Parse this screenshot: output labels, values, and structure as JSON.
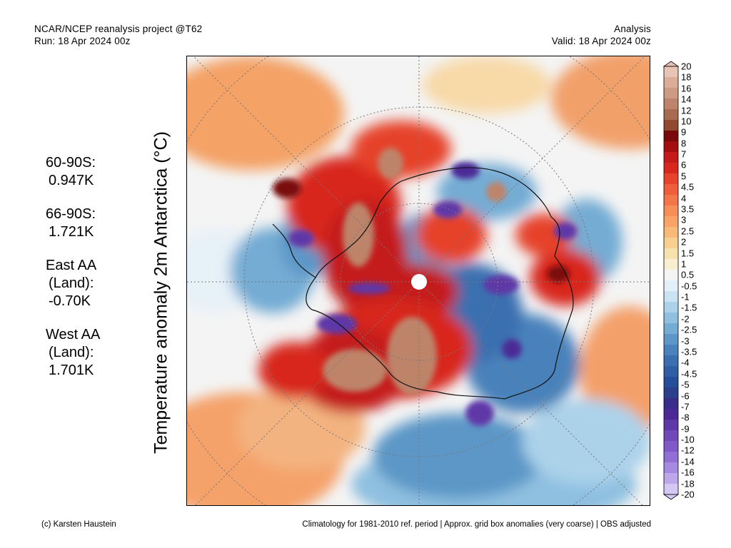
{
  "header": {
    "title_line1": "NCAR/NCEP reanalysis project @T62",
    "title_line2": "Run: 18 Apr 2024 00z",
    "right_line1": "Analysis",
    "right_line2": "Valid: 18 Apr 2024 00z"
  },
  "vertical_title": "Temperature anomaly 2m Antarctica (°C)",
  "stats": [
    {
      "label": "60-90S:",
      "value": "0.947K"
    },
    {
      "label": "66-90S:",
      "value": "1.721K"
    },
    {
      "label_line1": "East AA",
      "label_line2": "(Land):",
      "value": "-0.70K"
    },
    {
      "label_line1": "West AA",
      "label_line2": "(Land):",
      "value": "1.701K"
    }
  ],
  "colorbar": {
    "labels": [
      "20",
      "18",
      "16",
      "14",
      "12",
      "10",
      "9",
      "8",
      "7",
      "6",
      "5",
      "4.5",
      "4",
      "3.5",
      "3",
      "2.5",
      "2",
      "1.5",
      "1",
      "0.5",
      "-0.5",
      "-1",
      "-1.5",
      "-2",
      "-2.5",
      "-3",
      "-3.5",
      "-4",
      "-4.5",
      "-5",
      "-6",
      "-7",
      "-8",
      "-9",
      "-10",
      "-12",
      "-14",
      "-16",
      "-18",
      "-20"
    ],
    "colors": [
      "#e8c4b4",
      "#dcae99",
      "#cf9a82",
      "#be846b",
      "#a86a51",
      "#8f4a30",
      "#7a0a0a",
      "#a30f0f",
      "#c41a1a",
      "#d8281e",
      "#e6422c",
      "#ee5d3c",
      "#f2764a",
      "#f58e58",
      "#f7a466",
      "#f8ba78",
      "#f8cf8e",
      "#f7e2ad",
      "#f8efd0",
      "#f4f4f4",
      "#e4f0f8",
      "#c9e3f2",
      "#acd2ea",
      "#8fc0e0",
      "#74acd4",
      "#5c97c7",
      "#4a82bb",
      "#3b6fb0",
      "#2f5ea5",
      "#264e98",
      "#2b3f8a",
      "#3a2d8a",
      "#4c2a96",
      "#5e38a8",
      "#7048b8",
      "#8058c8",
      "#9070d4",
      "#a48ae0",
      "#bca8ea",
      "#d6c8f4"
    ]
  },
  "footer": {
    "left": "(c) Karsten Haustein",
    "right": "Climatology for 1981-2010 ref. period | Approx. grid box anomalies (very coarse) | OBS adjusted"
  }
}
